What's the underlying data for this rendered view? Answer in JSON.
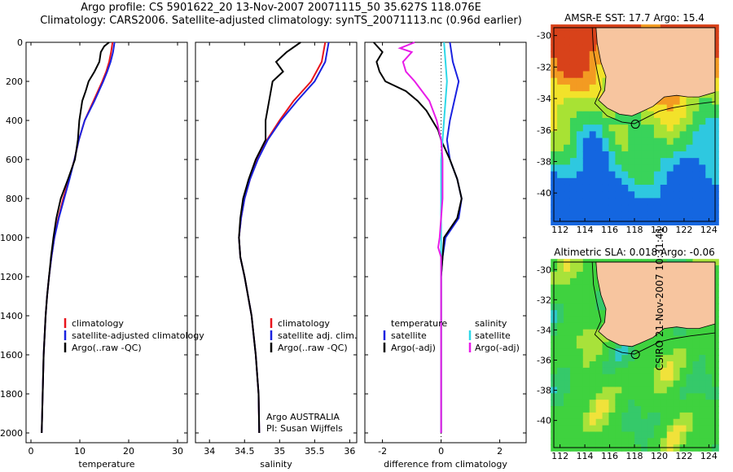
{
  "header": {
    "line1": "Argo profile: CS 5901622_20 13-Nov-2007 20071115_50 35.627S 118.076E",
    "line2": "Climatology: CARS2006. Satellite-adjusted climatology: synTS_20071113.nc (0.96d earlier)"
  },
  "side_label": "CSIRO 21-Nov-2007 10:31:41",
  "colors": {
    "climatology": "#e8141c",
    "satellite": "#1a22e0",
    "argo": "#000000",
    "satellite_salt": "#2ed8e8",
    "argo_salt": "#e81ce8",
    "land": "#f7c59f"
  },
  "chart_data": [
    {
      "type": "line",
      "xlabel": "temperature",
      "xlim": [
        -1,
        32
      ],
      "ylim": [
        2050,
        0
      ],
      "xticks": [
        "0",
        "10",
        "20",
        "30"
      ],
      "yticks": [
        "0",
        "200",
        "400",
        "600",
        "800",
        "1000",
        "1200",
        "1400",
        "1600",
        "1800",
        "2000"
      ],
      "legend": [
        "climatology",
        "satellite-adjusted climatology",
        "Argo(..raw -QC)"
      ],
      "series": [
        {
          "name": "climatology",
          "depth": [
            0,
            50,
            100,
            150,
            200,
            300,
            400,
            500,
            600,
            700,
            800,
            900,
            1000,
            1100,
            1200,
            1300,
            1400,
            1500,
            1600,
            1800,
            2000
          ],
          "values": [
            16.7,
            16.4,
            16.0,
            15.4,
            14.6,
            12.8,
            11.0,
            9.8,
            8.9,
            7.8,
            6.6,
            5.6,
            4.8,
            4.2,
            3.7,
            3.3,
            3.0,
            2.8,
            2.6,
            2.4,
            2.2
          ]
        },
        {
          "name": "satellite-adjusted climatology",
          "depth": [
            0,
            50,
            100,
            150,
            200,
            300,
            400,
            500,
            600,
            700,
            800,
            900,
            1000,
            1100,
            1200,
            1300,
            1400,
            1500,
            1600,
            1800,
            2000
          ],
          "values": [
            17.1,
            16.8,
            16.3,
            15.6,
            14.8,
            13.0,
            11.0,
            9.8,
            8.9,
            7.9,
            6.8,
            5.7,
            4.8,
            4.2,
            3.7,
            3.3,
            3.0,
            2.8,
            2.6,
            2.4,
            2.2
          ]
        },
        {
          "name": "Argo(..raw -QC)",
          "depth": [
            0,
            20,
            50,
            100,
            150,
            200,
            250,
            300,
            400,
            500,
            600,
            700,
            800,
            900,
            1000,
            1100,
            1200,
            1300,
            1400,
            1500,
            1600,
            1800,
            2000
          ],
          "values": [
            16.0,
            15.0,
            14.3,
            14.0,
            13.0,
            11.8,
            11.2,
            10.5,
            9.9,
            9.6,
            9.0,
            7.6,
            6.1,
            5.2,
            4.6,
            4.1,
            3.7,
            3.3,
            3.0,
            2.8,
            2.6,
            2.4,
            2.2
          ]
        }
      ]
    },
    {
      "type": "line",
      "xlabel": "salinity",
      "xlim": [
        33.8,
        36.1
      ],
      "ylim": [
        2050,
        0
      ],
      "xticks": [
        "34",
        "34.5",
        "35",
        "35.5",
        "36"
      ],
      "legend": [
        "climatology",
        "satellite adj. clim.",
        "Argo(..raw -QC)"
      ],
      "annotation": [
        "Argo AUSTRALIA",
        "PI: Susan Wijffels"
      ],
      "series": [
        {
          "name": "climatology",
          "depth": [
            0,
            100,
            200,
            300,
            400,
            500,
            600,
            700,
            800,
            900,
            1000,
            1100,
            1200,
            1400,
            1600,
            1800,
            2000
          ],
          "values": [
            35.65,
            35.6,
            35.45,
            35.2,
            35.0,
            34.82,
            34.68,
            34.58,
            34.5,
            34.45,
            34.42,
            34.44,
            34.5,
            34.6,
            34.66,
            34.7,
            34.71
          ]
        },
        {
          "name": "satellite adj. clim.",
          "depth": [
            0,
            100,
            200,
            300,
            400,
            500,
            600,
            700,
            800,
            900,
            1000,
            1100,
            1200,
            1400,
            1600,
            1800,
            2000
          ],
          "values": [
            35.7,
            35.65,
            35.5,
            35.25,
            35.02,
            34.83,
            34.69,
            34.58,
            34.5,
            34.45,
            34.42,
            34.44,
            34.5,
            34.6,
            34.66,
            34.7,
            34.71
          ]
        },
        {
          "name": "Argo(..raw -QC)",
          "depth": [
            0,
            50,
            100,
            150,
            200,
            300,
            400,
            500,
            600,
            700,
            800,
            900,
            1000,
            1100,
            1200,
            1400,
            1600,
            1800,
            2000
          ],
          "values": [
            35.3,
            35.1,
            34.95,
            35.05,
            34.9,
            34.85,
            34.8,
            34.8,
            34.66,
            34.56,
            34.48,
            34.44,
            34.42,
            34.44,
            34.5,
            34.6,
            34.66,
            34.7,
            34.71
          ]
        }
      ]
    },
    {
      "type": "line",
      "xlabel": "difference from climatology",
      "xlim": [
        -2.6,
        2.9
      ],
      "ylim": [
        2050,
        0
      ],
      "xticks": [
        "-2",
        "0",
        "2"
      ],
      "legend_left": [
        "temperature",
        "satellite",
        "Argo(-adj)"
      ],
      "legend_right": [
        "salinity",
        "satellite",
        "Argo(-adj)"
      ],
      "series": [
        {
          "name": "satellite",
          "group": "temperature",
          "depth": [
            0,
            100,
            200,
            300,
            400,
            500,
            600,
            700,
            800,
            900,
            1000,
            1100,
            1200,
            1400,
            1600,
            1800,
            2000
          ],
          "values": [
            0.3,
            0.4,
            0.6,
            0.45,
            0.3,
            0.2,
            0.3,
            0.55,
            0.7,
            0.6,
            0.15,
            0.05,
            0.0,
            0.0,
            0.0,
            0.0,
            0.0
          ]
        },
        {
          "name": "Argo(-adj)",
          "group": "temperature",
          "depth": [
            0,
            50,
            100,
            150,
            200,
            250,
            300,
            350,
            400,
            450,
            500,
            600,
            700,
            800,
            900,
            1000,
            1100,
            1200,
            1400,
            1600,
            1800,
            2000
          ],
          "values": [
            -2.3,
            -2.0,
            -2.2,
            -2.1,
            -1.9,
            -1.2,
            -0.8,
            -0.5,
            -0.3,
            -0.1,
            0.0,
            0.3,
            0.55,
            0.7,
            0.55,
            0.1,
            0.05,
            0.0,
            0.0,
            0.0,
            0.0,
            0.0
          ]
        },
        {
          "name": "satellite",
          "group": "salinity",
          "depth": [
            0,
            100,
            200,
            300,
            400,
            500,
            600,
            800,
            1000,
            1100,
            1200,
            1400,
            1600,
            1800,
            2000
          ],
          "values": [
            0.1,
            0.15,
            0.2,
            0.15,
            0.1,
            0.05,
            0.0,
            0.0,
            0.0,
            0.0,
            0.0,
            0.0,
            0.0,
            0.0,
            0.0
          ]
        },
        {
          "name": "Argo(-adj)",
          "group": "salinity",
          "depth": [
            0,
            30,
            50,
            100,
            150,
            200,
            300,
            400,
            500,
            600,
            800,
            900,
            1000,
            1050,
            1100,
            1200,
            1400,
            1600,
            1800,
            2000
          ],
          "values": [
            -0.9,
            -1.4,
            -1.0,
            -1.3,
            -1.2,
            -0.9,
            -0.4,
            -0.15,
            0.0,
            0.05,
            0.05,
            0.0,
            -0.05,
            -0.1,
            0.0,
            0.0,
            0.0,
            0.0,
            0.0,
            0.0
          ]
        }
      ]
    }
  ],
  "maps": [
    {
      "title": "AMSR-E SST: 17.7 Argo: 15.4",
      "xticks": [
        "112",
        "114",
        "116",
        "118",
        "120",
        "122",
        "124"
      ],
      "yticks": [
        "-30",
        "-32",
        "-34",
        "-36",
        "-38",
        "-40"
      ],
      "lon_range": [
        111.5,
        124.5
      ],
      "lat_range": [
        -41.8,
        -29.5
      ],
      "marker": {
        "lon": 118.076,
        "lat": -35.627
      }
    },
    {
      "title": "Altimetric SLA: 0.018 Argo: -0.06",
      "xticks": [
        "112",
        "114",
        "116",
        "118",
        "120",
        "122",
        "124"
      ],
      "yticks": [
        "-30",
        "-32",
        "-34",
        "-36",
        "-38",
        "-40"
      ],
      "lon_range": [
        111.5,
        124.5
      ],
      "lat_range": [
        -41.8,
        -29.5
      ],
      "marker": {
        "lon": 118.076,
        "lat": -35.627
      }
    }
  ]
}
